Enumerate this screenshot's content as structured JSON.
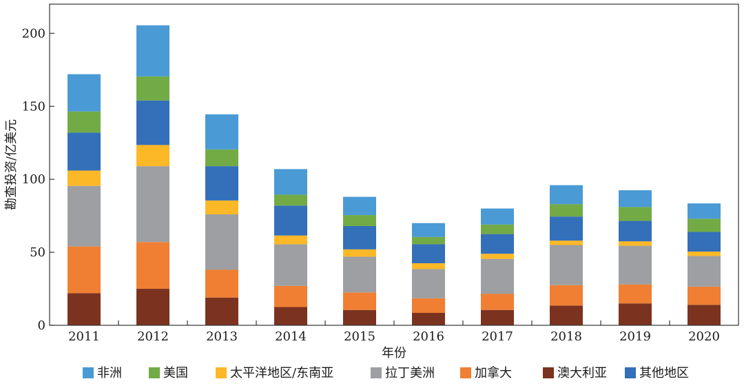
{
  "chart_data": {
    "type": "bar",
    "stacked": true,
    "title": "",
    "xlabel": "年份",
    "ylabel": "勘查投资/亿美元",
    "ylim": [
      0,
      220
    ],
    "yticks": [
      0,
      50,
      100,
      150,
      200
    ],
    "categories": [
      "2011",
      "2012",
      "2013",
      "2014",
      "2015",
      "2016",
      "2017",
      "2018",
      "2019",
      "2020"
    ],
    "grid": false,
    "legend_position": "bottom",
    "series": [
      {
        "name": "澳大利亚",
        "color": "#7b3320",
        "values": [
          22,
          25,
          19,
          12.5,
          10.5,
          8.5,
          10.5,
          13.5,
          15,
          14
        ]
      },
      {
        "name": "加拿大",
        "color": "#f07f33",
        "values": [
          32,
          32,
          19,
          14.5,
          12,
          10,
          11,
          14,
          13,
          12.5
        ]
      },
      {
        "name": "拉丁美洲",
        "color": "#9d9fa2",
        "values": [
          41.5,
          52,
          38,
          28.5,
          24.5,
          20,
          24,
          27.5,
          26.5,
          21
        ]
      },
      {
        "name": "太平洋地区/东南亚",
        "color": "#fdb827",
        "values": [
          10.5,
          14.5,
          9.5,
          6,
          5,
          4,
          3.5,
          3,
          3,
          3
        ]
      },
      {
        "name": "其他地区",
        "color": "#346fb9",
        "values": [
          26,
          30.5,
          23.5,
          20.5,
          16,
          13,
          13.5,
          16.5,
          14,
          13.5
        ]
      },
      {
        "name": "美国",
        "color": "#72ab46",
        "values": [
          14.5,
          16.5,
          11.5,
          7.5,
          7.5,
          5,
          6.5,
          8.5,
          9.5,
          9
        ]
      },
      {
        "name": "非洲",
        "color": "#4a9ad6",
        "values": [
          25.5,
          35,
          24,
          17.5,
          12.5,
          9.5,
          11,
          13,
          11.5,
          10.5
        ]
      }
    ],
    "legend_order": [
      "非洲",
      "美国",
      "太平洋地区/东南亚",
      "拉丁美洲",
      "加拿大",
      "澳大利亚",
      "其他地区"
    ]
  }
}
